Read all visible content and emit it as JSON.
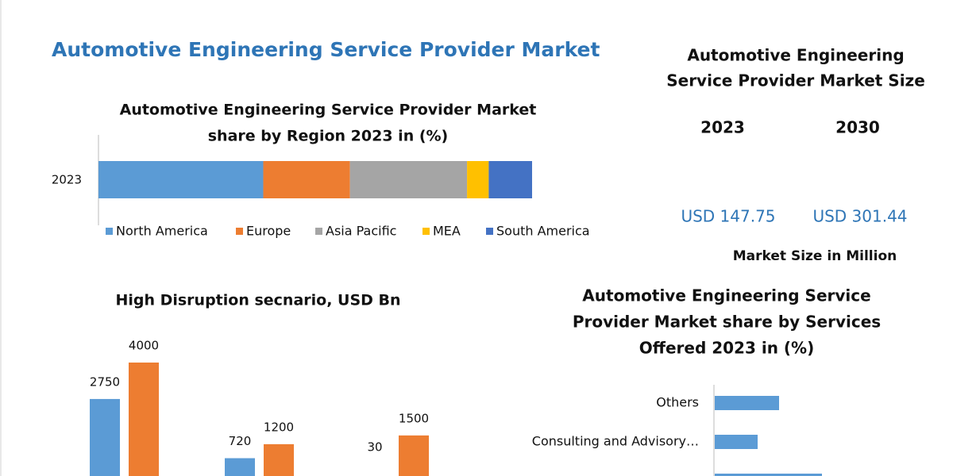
{
  "header": {
    "title": "Automotive Engineering Service Provider Market"
  },
  "market_size": {
    "title": [
      "Automotive Engineering",
      "Service Provider Market Size"
    ],
    "years": [
      "2023",
      "2030"
    ],
    "values": [
      "USD 147.75",
      "USD 301.44"
    ],
    "note": "Market Size in Million"
  },
  "chart_data": [
    {
      "type": "barh",
      "stacked": true,
      "title": [
        "Automotive Engineering Service Provider Market",
        "share by Region 2023 in (%)"
      ],
      "categories": [
        "2023"
      ],
      "series": [
        {
          "name": "North America",
          "color": "#5b9bd5",
          "values": [
            38
          ]
        },
        {
          "name": "Europe",
          "color": "#ed7d31",
          "values": [
            20
          ]
        },
        {
          "name": "Asia Pacific",
          "color": "#a5a5a5",
          "values": [
            27
          ]
        },
        {
          "name": "MEA",
          "color": "#ffc000",
          "values": [
            5
          ]
        },
        {
          "name": "South America",
          "color": "#4472c4",
          "values": [
            10
          ]
        }
      ],
      "legend": "bottom"
    },
    {
      "type": "bar",
      "title": [
        "High Disruption secnario, USD Bn"
      ],
      "categories": [
        null,
        null,
        null
      ],
      "series": [
        {
          "color": "#5b9bd5",
          "values": [
            2750,
            720,
            30
          ]
        },
        {
          "color": "#ed7d31",
          "values": [
            4000,
            1200,
            1500
          ]
        }
      ],
      "data_labels": true
    },
    {
      "type": "barh",
      "stacked": false,
      "title": [
        "Automotive Engineering Service",
        "Provider Market share by Services",
        "Offered 2023 in (%)"
      ],
      "categories": [
        "Others",
        "Consulting and Advisory…",
        null
      ],
      "series": [
        {
          "color": "#5b9bd5",
          "values": [
            12,
            8,
            20
          ]
        }
      ]
    }
  ]
}
